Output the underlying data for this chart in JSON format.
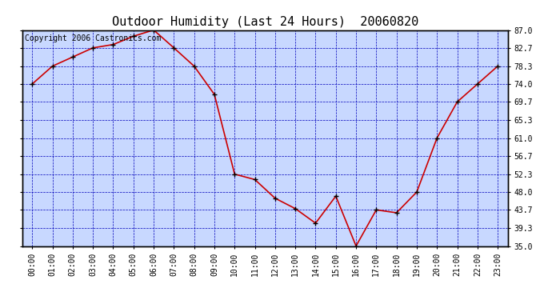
{
  "title": "Outdoor Humidity (Last 24 Hours)  20060820",
  "copyright": "Copyright 2006 Castronics.com",
  "x_labels": [
    "00:00",
    "01:00",
    "02:00",
    "03:00",
    "04:00",
    "05:00",
    "06:00",
    "07:00",
    "08:00",
    "09:00",
    "10:00",
    "11:00",
    "12:00",
    "13:00",
    "14:00",
    "15:00",
    "16:00",
    "17:00",
    "18:00",
    "19:00",
    "20:00",
    "21:00",
    "22:00",
    "23:00"
  ],
  "y_values": [
    74.0,
    78.3,
    80.5,
    82.7,
    83.5,
    85.5,
    87.0,
    82.7,
    78.3,
    71.5,
    52.3,
    51.0,
    46.5,
    44.0,
    40.5,
    47.0,
    35.0,
    43.7,
    43.0,
    48.0,
    61.0,
    69.7,
    74.0,
    78.3
  ],
  "ylim": [
    35.0,
    87.0
  ],
  "yticks": [
    35.0,
    39.3,
    43.7,
    48.0,
    52.3,
    56.7,
    61.0,
    65.3,
    69.7,
    74.0,
    78.3,
    82.7,
    87.0
  ],
  "line_color": "#cc0000",
  "marker_color": "#000000",
  "background_color": "#c8d8ff",
  "grid_color": "#0000bb",
  "border_color": "#000000",
  "title_color": "#000000",
  "copyright_color": "#000000",
  "title_fontsize": 11,
  "tick_fontsize": 7,
  "copyright_fontsize": 7,
  "fig_width": 6.9,
  "fig_height": 3.75,
  "dpi": 100
}
